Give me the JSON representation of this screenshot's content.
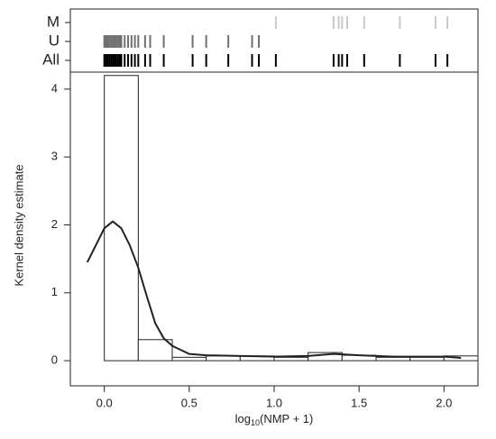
{
  "chart_data": {
    "type": "histogram",
    "ylabel": "Kernel density estimate",
    "xlabel": {
      "base": "log",
      "subscript": "10",
      "argument": "(NMP + 1)"
    },
    "bins": [
      0,
      0.2,
      0.4,
      0.6,
      0.8,
      1.0,
      1.2,
      1.4,
      1.6,
      1.8,
      2.0,
      2.2
    ],
    "values": [
      4.2,
      0.31,
      0.05,
      0.07,
      0.07,
      0.05,
      0.12,
      0.08,
      0.05,
      0.05,
      0.07
    ],
    "bar_color": "#ffffff",
    "density": {
      "color": "#222222",
      "x": [
        -0.1,
        -0.05,
        0.0,
        0.05,
        0.1,
        0.15,
        0.2,
        0.25,
        0.3,
        0.35,
        0.4,
        0.5,
        0.6,
        0.8,
        1.0,
        1.2,
        1.35,
        1.5,
        1.7,
        1.9,
        2.0,
        2.1
      ],
      "values": [
        1.45,
        1.7,
        1.95,
        2.05,
        1.95,
        1.7,
        1.37,
        0.95,
        0.55,
        0.33,
        0.22,
        0.1,
        0.08,
        0.07,
        0.06,
        0.07,
        0.1,
        0.08,
        0.06,
        0.06,
        0.06,
        0.04
      ]
    },
    "rug": [
      {
        "name": "M",
        "color": "#c8c8c8",
        "values": [
          1.01,
          1.35,
          1.38,
          1.4,
          1.43,
          1.53,
          1.74,
          1.95,
          2.02
        ]
      },
      {
        "name": "U",
        "color": "#707070",
        "values": [
          0.0,
          0.01,
          0.02,
          0.03,
          0.04,
          0.05,
          0.06,
          0.07,
          0.08,
          0.09,
          0.1,
          0.12,
          0.14,
          0.16,
          0.18,
          0.2,
          0.24,
          0.27,
          0.35,
          0.52,
          0.6,
          0.73,
          0.87,
          0.91
        ]
      },
      {
        "name": "All",
        "color": "#000000",
        "values": [
          0.0,
          0.01,
          0.02,
          0.03,
          0.04,
          0.05,
          0.06,
          0.07,
          0.08,
          0.09,
          0.1,
          0.12,
          0.14,
          0.16,
          0.18,
          0.2,
          0.24,
          0.27,
          0.35,
          0.52,
          0.6,
          0.73,
          0.87,
          0.91,
          1.01,
          1.35,
          1.38,
          1.4,
          1.43,
          1.53,
          1.74,
          1.95,
          2.02
        ]
      }
    ],
    "xlim": [
      -0.2,
      2.2
    ],
    "ylim": [
      -0.37,
      4.25
    ],
    "xticks": [
      {
        "value": 0,
        "label": "0.0"
      },
      0.5,
      {
        "value": 1,
        "label": "1.0"
      },
      1.5,
      {
        "value": 2,
        "label": "2.0"
      }
    ],
    "yticks": [
      0,
      1,
      2,
      3,
      4
    ]
  }
}
